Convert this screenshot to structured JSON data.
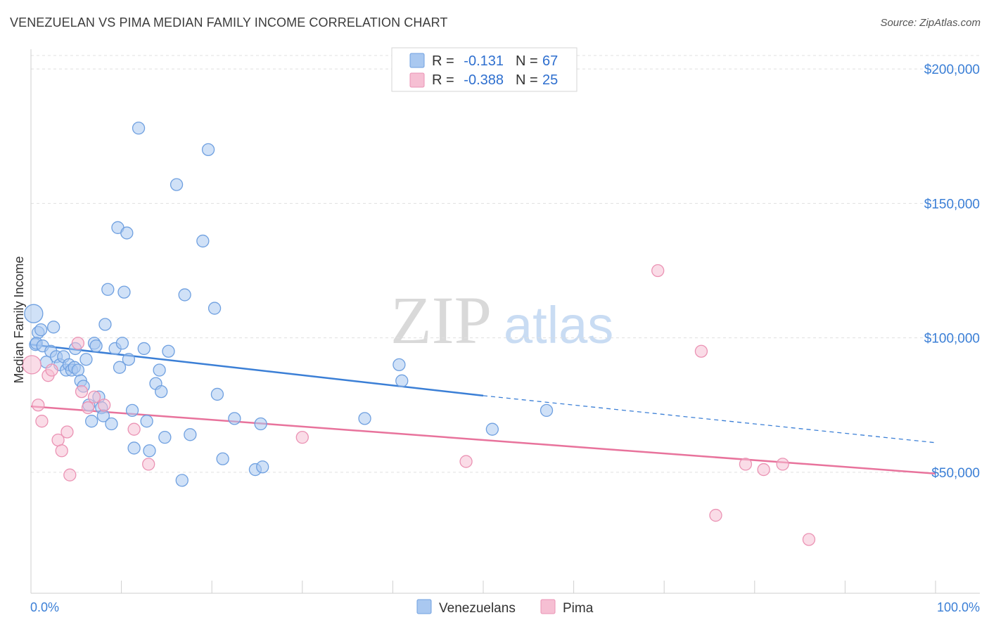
{
  "title": "VENEZUELAN VS PIMA MEDIAN FAMILY INCOME CORRELATION CHART",
  "source": "Source: ZipAtlas.com",
  "watermark": {
    "zip": "ZIP",
    "atlas": "atlas"
  },
  "colors": {
    "blue": "#3b7fd6",
    "blue_fill": "#a9c8f0",
    "pink": "#e8739c",
    "pink_fill": "#f6bfd3",
    "grid": "#e0e0e0"
  },
  "legend": {
    "rows": [
      {
        "r_label": "R =",
        "r_value": "-0.131",
        "n_label": "N =",
        "n_value": "67",
        "series": "blue"
      },
      {
        "r_label": "R =",
        "r_value": "-0.388",
        "n_label": "N =",
        "n_value": "25",
        "series": "pink"
      }
    ]
  },
  "chart_data": {
    "type": "scatter",
    "title": "VENEZUELAN VS PIMA MEDIAN FAMILY INCOME CORRELATION CHART",
    "xlabel": "",
    "ylabel": "Median Family Income",
    "x_tick_labels": [
      "0.0%",
      "100.0%"
    ],
    "y_tick_labels": [
      "$200,000",
      "$150,000",
      "$100,000",
      "$50,000"
    ],
    "y_ticks": [
      200000,
      150000,
      100000,
      50000
    ],
    "xlim": [
      0,
      100
    ],
    "ylim": [
      5000,
      210000
    ],
    "series": [
      {
        "name": "Venezuelans",
        "color": "#3b7fd6",
        "r": -0.131,
        "n": 67,
        "trend": {
          "x0": 0,
          "y0": 97500,
          "x1": 50,
          "y1": 78500,
          "dash_to_x": 100,
          "dash_to_y": 61000
        },
        "points": [
          [
            0.3,
            109000
          ],
          [
            0.5,
            97500
          ],
          [
            0.8,
            102000
          ],
          [
            0.6,
            98000
          ],
          [
            1.1,
            103000
          ],
          [
            1.3,
            97000
          ],
          [
            1.7,
            91000
          ],
          [
            2.2,
            95000
          ],
          [
            2.5,
            104000
          ],
          [
            2.8,
            93000
          ],
          [
            3.2,
            90000
          ],
          [
            3.6,
            93000
          ],
          [
            3.9,
            88000
          ],
          [
            4.2,
            90000
          ],
          [
            4.5,
            88000
          ],
          [
            4.8,
            89000
          ],
          [
            5.2,
            88000
          ],
          [
            5.5,
            84000
          ],
          [
            5.8,
            82000
          ],
          [
            6.1,
            92000
          ],
          [
            6.4,
            75000
          ],
          [
            6.7,
            69000
          ],
          [
            7.0,
            98000
          ],
          [
            7.2,
            97000
          ],
          [
            7.5,
            78000
          ],
          [
            7.8,
            74000
          ],
          [
            8.0,
            71000
          ],
          [
            8.2,
            105000
          ],
          [
            8.5,
            118000
          ],
          [
            8.9,
            68000
          ],
          [
            9.3,
            96000
          ],
          [
            9.6,
            141000
          ],
          [
            9.8,
            89000
          ],
          [
            10.1,
            98000
          ],
          [
            10.3,
            117000
          ],
          [
            10.6,
            139000
          ],
          [
            10.8,
            92000
          ],
          [
            11.2,
            73000
          ],
          [
            11.4,
            59000
          ],
          [
            11.9,
            178000
          ],
          [
            12.5,
            96000
          ],
          [
            12.8,
            69000
          ],
          [
            13.1,
            58000
          ],
          [
            13.8,
            83000
          ],
          [
            14.2,
            88000
          ],
          [
            14.4,
            80000
          ],
          [
            14.8,
            63000
          ],
          [
            15.2,
            95000
          ],
          [
            16.1,
            157000
          ],
          [
            16.7,
            47000
          ],
          [
            17.0,
            116000
          ],
          [
            17.6,
            64000
          ],
          [
            19.0,
            136000
          ],
          [
            19.6,
            170000
          ],
          [
            20.3,
            111000
          ],
          [
            20.6,
            79000
          ],
          [
            21.2,
            55000
          ],
          [
            22.5,
            70000
          ],
          [
            24.8,
            51000
          ],
          [
            25.6,
            52000
          ],
          [
            25.4,
            68000
          ],
          [
            36.9,
            70000
          ],
          [
            51.0,
            66000
          ],
          [
            57.0,
            73000
          ],
          [
            40.7,
            90000
          ],
          [
            41.0,
            84000
          ],
          [
            4.9,
            96000
          ]
        ]
      },
      {
        "name": "Pima",
        "color": "#e8739c",
        "r": -0.388,
        "n": 25,
        "trend": {
          "x0": 0,
          "y0": 74500,
          "x1": 100,
          "y1": 49500
        },
        "points": [
          [
            0.1,
            90000
          ],
          [
            0.8,
            75000
          ],
          [
            1.2,
            69000
          ],
          [
            1.9,
            86000
          ],
          [
            2.3,
            88000
          ],
          [
            3.0,
            62000
          ],
          [
            3.4,
            58000
          ],
          [
            4.0,
            65000
          ],
          [
            4.3,
            49000
          ],
          [
            5.2,
            98000
          ],
          [
            5.6,
            80000
          ],
          [
            6.3,
            74000
          ],
          [
            7.0,
            78000
          ],
          [
            8.1,
            75000
          ],
          [
            11.4,
            66000
          ],
          [
            13.0,
            53000
          ],
          [
            30.0,
            63000
          ],
          [
            48.1,
            54000
          ],
          [
            69.3,
            125000
          ],
          [
            74.1,
            95000
          ],
          [
            75.7,
            34000
          ],
          [
            79.0,
            53000
          ],
          [
            81.0,
            51000
          ],
          [
            83.1,
            53000
          ],
          [
            86.0,
            25000
          ]
        ]
      }
    ],
    "legend_labels": [
      "Venezuelans",
      "Pima"
    ],
    "grid": true
  }
}
